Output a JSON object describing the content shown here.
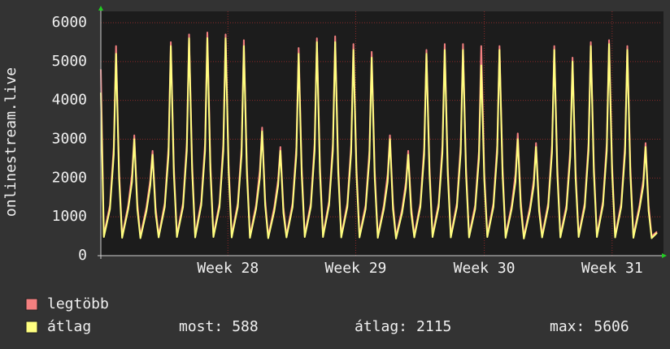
{
  "chart_data": {
    "type": "line",
    "y_label": "onlinestream.live",
    "xlim": [
      0,
      731
    ],
    "xticks": [
      {
        "value": 167,
        "label": "Week 28"
      },
      {
        "value": 335,
        "label": "Week 29"
      },
      {
        "value": 504,
        "label": "Week 30"
      },
      {
        "value": 672,
        "label": "Week 31"
      }
    ],
    "ylim": [
      0,
      6000
    ],
    "yticks": [
      0,
      1000,
      2000,
      3000,
      4000,
      5000,
      6000
    ],
    "grid": true,
    "x": [
      0,
      4,
      12,
      17,
      20,
      24,
      28,
      36,
      41,
      44,
      48,
      52,
      60,
      65,
      68,
      72,
      76,
      84,
      89,
      92,
      96,
      100,
      108,
      113,
      116,
      120,
      124,
      132,
      137,
      140,
      144,
      148,
      156,
      161,
      164,
      168,
      172,
      180,
      185,
      188,
      192,
      196,
      204,
      209,
      212,
      216,
      220,
      228,
      233,
      236,
      240,
      244,
      252,
      257,
      260,
      264,
      268,
      276,
      281,
      284,
      288,
      292,
      300,
      305,
      308,
      312,
      316,
      324,
      329,
      332,
      336,
      340,
      348,
      353,
      356,
      360,
      364,
      372,
      377,
      380,
      384,
      388,
      396,
      401,
      404,
      408,
      412,
      420,
      425,
      428,
      432,
      436,
      444,
      449,
      452,
      456,
      460,
      468,
      473,
      476,
      480,
      484,
      492,
      497,
      500,
      504,
      508,
      516,
      521,
      524,
      528,
      532,
      540,
      545,
      548,
      552,
      556,
      564,
      569,
      572,
      576,
      580,
      588,
      593,
      596,
      600,
      604,
      612,
      617,
      620,
      624,
      628,
      636,
      641,
      644,
      648,
      652,
      660,
      665,
      668,
      672,
      676,
      684,
      689,
      692,
      696,
      700,
      708,
      713,
      716,
      720,
      724,
      731
    ],
    "series": [
      {
        "name": "legtöbb",
        "color": "#f48080",
        "values": [
          4800,
          530,
          1300,
          2800,
          5400,
          2200,
          510,
          1300,
          2100,
          3100,
          1350,
          500,
          1250,
          1950,
          2700,
          1250,
          520,
          1350,
          2800,
          5500,
          2300,
          530,
          1350,
          2900,
          5700,
          2400,
          520,
          1400,
          2900,
          5750,
          2400,
          530,
          1350,
          2900,
          5700,
          2350,
          520,
          1350,
          2800,
          5550,
          2300,
          510,
          1300,
          2200,
          3300,
          1450,
          500,
          1250,
          1950,
          2800,
          1250,
          520,
          1350,
          2800,
          5350,
          2300,
          530,
          1350,
          2900,
          5600,
          2350,
          530,
          1400,
          2900,
          5650,
          2350,
          520,
          1350,
          2850,
          5450,
          2300,
          520,
          1300,
          2700,
          5250,
          2200,
          510,
          1300,
          2100,
          3100,
          1350,
          490,
          1200,
          1900,
          2700,
          1250,
          520,
          1350,
          2800,
          5300,
          2300,
          530,
          1350,
          2850,
          5450,
          2300,
          520,
          1350,
          2850,
          5450,
          2300,
          520,
          1300,
          2700,
          5400,
          2150,
          530,
          1350,
          2850,
          5400,
          2300,
          510,
          1300,
          2100,
          3150,
          1400,
          490,
          1250,
          1950,
          2900,
          1300,
          520,
          1350,
          2850,
          5400,
          2300,
          520,
          1300,
          2750,
          5100,
          2200,
          530,
          1350,
          2900,
          5500,
          2350,
          530,
          1400,
          2900,
          5550,
          2350,
          520,
          1350,
          2850,
          5400,
          2300,
          510,
          1300,
          1950,
          2900,
          1300,
          500,
          620
        ]
      },
      {
        "name": "átlag",
        "color": "#ffff80",
        "values": [
          4200,
          480,
          1200,
          2600,
          5200,
          2000,
          460,
          1200,
          1900,
          3000,
          1200,
          450,
          1150,
          1800,
          2600,
          1100,
          470,
          1250,
          2600,
          5400,
          2100,
          480,
          1250,
          2700,
          5600,
          2200,
          470,
          1300,
          2700,
          5606,
          2200,
          480,
          1250,
          2700,
          5600,
          2150,
          470,
          1250,
          2600,
          5400,
          2100,
          460,
          1200,
          2000,
          3200,
          1300,
          450,
          1150,
          1800,
          2700,
          1100,
          470,
          1250,
          2600,
          5200,
          2100,
          480,
          1250,
          2700,
          5500,
          2150,
          480,
          1300,
          2700,
          5500,
          2150,
          470,
          1250,
          2650,
          5300,
          2100,
          470,
          1200,
          2500,
          5100,
          2000,
          460,
          1200,
          1900,
          3000,
          1200,
          440,
          1100,
          1750,
          2600,
          1100,
          470,
          1250,
          2600,
          5200,
          2100,
          480,
          1250,
          2650,
          5300,
          2100,
          470,
          1250,
          2650,
          5300,
          2100,
          470,
          1200,
          2500,
          4900,
          1950,
          480,
          1250,
          2650,
          5300,
          2100,
          460,
          1200,
          1900,
          3000,
          1250,
          440,
          1150,
          1800,
          2800,
          1150,
          470,
          1250,
          2650,
          5300,
          2100,
          470,
          1200,
          2550,
          5000,
          2000,
          480,
          1250,
          2700,
          5400,
          2150,
          480,
          1300,
          2700,
          5450,
          2150,
          470,
          1250,
          2650,
          5300,
          2100,
          460,
          1200,
          1800,
          2800,
          1150,
          450,
          588
        ]
      }
    ],
    "stats": [
      {
        "label": "most:",
        "value": 588
      },
      {
        "label": "átlag:",
        "value": 2115
      },
      {
        "label": "max:",
        "value": 5606
      }
    ]
  }
}
